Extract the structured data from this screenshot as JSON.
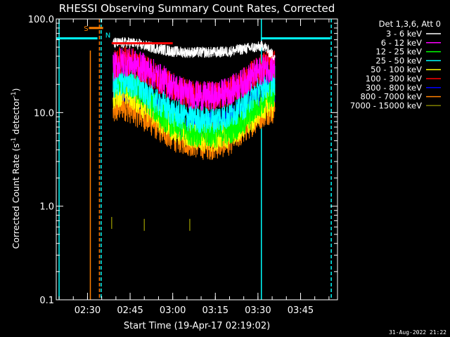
{
  "chart_data": {
    "type": "line",
    "title": "RHESSI Observing Summary Count Rates, Corrected",
    "xlabel": "Start Time (19-Apr-17 02:19:02)",
    "ylabel_main": "Corrected Count Rate (s",
    "ylabel_sup1": "-1",
    "ylabel_mid": " detector",
    "ylabel_sup2": "-1",
    "ylabel_end": ")",
    "yscale": "log",
    "ylim": [
      0.1,
      100
    ],
    "xlim_minutes": [
      139.0,
      238.0
    ],
    "x_ticks": [
      {
        "label": "02:30",
        "minutes": 150
      },
      {
        "label": "02:45",
        "minutes": 165
      },
      {
        "label": "03:00",
        "minutes": 180
      },
      {
        "label": "03:15",
        "minutes": 195
      },
      {
        "label": "03:30",
        "minutes": 210
      },
      {
        "label": "03:45",
        "minutes": 225
      }
    ],
    "y_ticks": [
      {
        "label": "100.0",
        "value": 100
      },
      {
        "label": "10.0",
        "value": 10
      },
      {
        "label": "1.0",
        "value": 1
      },
      {
        "label": "0.1",
        "value": 0.1
      }
    ],
    "legend_header": "Det 1,3,6, Att 0",
    "legend_position": "top-right outside",
    "series": [
      {
        "name": "3 - 6 keV",
        "color": "#ffffff",
        "x": [
          159,
          165,
          170,
          175,
          180,
          185,
          190,
          195,
          200,
          205,
          210,
          212,
          214,
          216
        ],
        "y": [
          55,
          56,
          52,
          48,
          45,
          44,
          44,
          44,
          45,
          48,
          50,
          52,
          44,
          40
        ]
      },
      {
        "name": "6 - 12 keV",
        "color": "#ff00ff",
        "x": [
          159,
          162,
          165,
          170,
          175,
          180,
          185,
          190,
          195,
          200,
          205,
          210,
          213,
          216
        ],
        "y": [
          30,
          35,
          34,
          30,
          24,
          19,
          16,
          15,
          15,
          17,
          21,
          27,
          30,
          30
        ]
      },
      {
        "name": "12 - 25 keV",
        "color": "#00ff00",
        "x": [
          159,
          162,
          165,
          170,
          175,
          180,
          185,
          190,
          195,
          200,
          205,
          210,
          213,
          216
        ],
        "y": [
          20,
          22,
          20,
          15,
          10,
          7.5,
          6.5,
          6,
          6,
          6.5,
          8,
          12,
          15,
          16
        ]
      },
      {
        "name": "25 - 50 keV",
        "color": "#00ffff",
        "x": [
          159,
          162,
          165,
          170,
          175,
          180,
          185,
          190,
          195,
          200,
          205,
          210,
          213,
          216
        ],
        "y": [
          20,
          22,
          21,
          17,
          13,
          10,
          9,
          8.5,
          8.5,
          9.5,
          12,
          17,
          20,
          22
        ]
      },
      {
        "name": "50 - 100 keV",
        "color": "#ffff00",
        "x": [
          159,
          162,
          165,
          170,
          175,
          180,
          185,
          190,
          195,
          200,
          205,
          210,
          213,
          216
        ],
        "y": [
          15,
          17,
          16,
          12,
          9,
          7,
          6,
          5.5,
          5.5,
          6,
          7.5,
          10,
          12,
          13
        ]
      },
      {
        "name": "100 - 300 keV",
        "color": "#ff0000",
        "x": [
          159,
          162,
          165,
          170,
          175,
          180,
          185,
          190,
          195,
          200,
          205,
          210,
          213,
          216
        ],
        "y": [
          32,
          36,
          35,
          29,
          23,
          19,
          16,
          15,
          15,
          17,
          21,
          28,
          33,
          34
        ]
      },
      {
        "name": "300 - 800 keV",
        "color": "#0000ff",
        "x": [
          159,
          162,
          165,
          170,
          175,
          180,
          185,
          190,
          195,
          200,
          205,
          210,
          213,
          216
        ],
        "y": [
          17,
          19,
          18,
          14,
          11,
          8.5,
          7.5,
          7.2,
          7.2,
          8,
          10,
          14,
          16,
          17
        ]
      },
      {
        "name": "800 - 7000 keV",
        "color": "#ff8000",
        "x": [
          159,
          162,
          165,
          170,
          175,
          180,
          185,
          190,
          195,
          200,
          205,
          210,
          213,
          216
        ],
        "y": [
          10,
          12,
          11,
          9,
          7,
          5.5,
          5,
          4.5,
          4.5,
          5,
          6.5,
          9,
          10.5,
          11
        ]
      },
      {
        "name": "7000 - 15000 keV",
        "color": "#808000",
        "x": [
          158.5,
          170,
          186
        ],
        "y": [
          0.65,
          0.62,
          0.62
        ]
      }
    ],
    "annotations": [
      {
        "text": "S",
        "color": "#ff8000",
        "x_minutes": 149.5,
        "y": 80
      },
      {
        "text": "N",
        "color": "#00ffff",
        "x_minutes": 157.2,
        "y": 68
      }
    ],
    "saa_bar": {
      "color": "#ff8000",
      "x_start": 150.5,
      "x_end": 155.5,
      "y": 80
    },
    "night_bars": {
      "color": "#00ffff",
      "y": 62,
      "segments": [
        [
          139.0,
          153.5
        ],
        [
          211.0,
          235.5
        ]
      ]
    },
    "spike_line": {
      "color": "#ff8000",
      "x_minutes": 151.0,
      "y_top": 46
    },
    "vlines_solid": [
      {
        "color": "#00ffff",
        "x_minutes": 140.0
      },
      {
        "color": "#00ffff",
        "x_minutes": 211.2
      }
    ],
    "vlines_dashed": [
      {
        "color": "#ff8000",
        "x_minutes": 154.2
      },
      {
        "color": "#00ffff",
        "x_minutes": 154.8
      },
      {
        "color": "#00ffff",
        "x_minutes": 235.8
      }
    ],
    "red_bar": {
      "color": "#ff0000",
      "x_start": 158.5,
      "x_end": 180.0,
      "y": 55
    },
    "footer_date": "31-Aug-2022 21:22"
  }
}
